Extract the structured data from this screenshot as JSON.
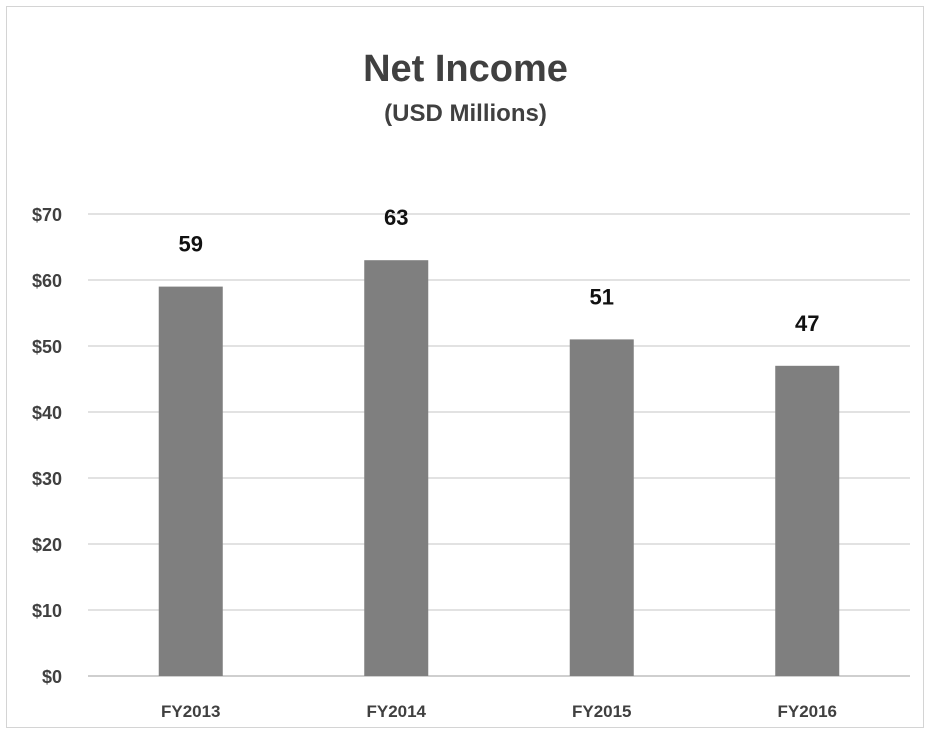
{
  "chart_data": {
    "type": "bar",
    "title": "Net Income",
    "subtitle": "(USD Millions)",
    "categories": [
      "FY2013",
      "FY2014",
      "FY2015",
      "FY2016"
    ],
    "values": [
      59,
      63,
      51,
      47
    ],
    "data_labels": [
      "59",
      "63",
      "51",
      "47"
    ],
    "ylim": [
      0,
      70
    ],
    "y_ticks": [
      0,
      10,
      20,
      30,
      40,
      50,
      60,
      70
    ],
    "y_tick_labels": [
      "$0",
      "$10",
      "$20",
      "$30",
      "$40",
      "$50",
      "$60",
      "$70"
    ],
    "xlabel": "",
    "ylabel": "",
    "grid": true,
    "legend": "none",
    "colors": {
      "bar": "#7f7f7f",
      "grid": "#d9d9d9",
      "text": "#404040"
    }
  }
}
